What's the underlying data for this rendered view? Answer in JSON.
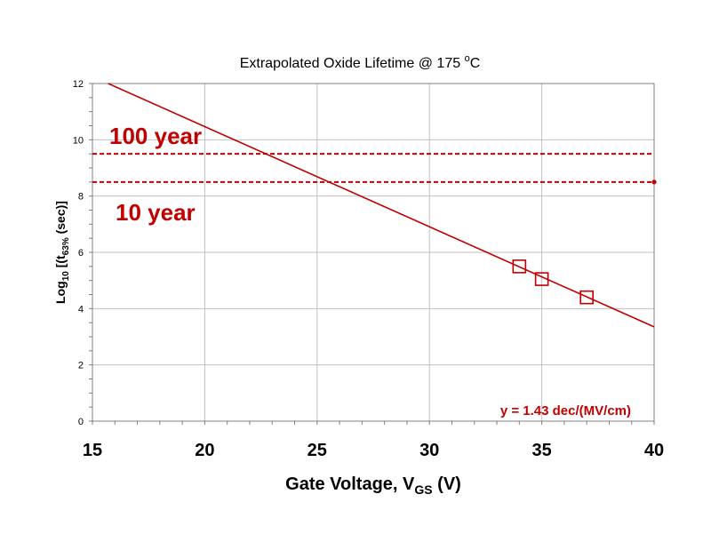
{
  "chart_data": {
    "type": "scatter",
    "title": "Extrapolated Oxide Lifetime @ 175 ",
    "title_sup": "o",
    "title_tail": "C",
    "xlabel": "Gate Voltage, V",
    "xlabel_sub": "GS",
    "xlabel_tail": " (V)",
    "ylabel": "Log",
    "ylabel_sub1": "10",
    "ylabel_mid": " [(t",
    "ylabel_sub2": "63%",
    "ylabel_tail": " (sec)]",
    "xlim": [
      15,
      40
    ],
    "ylim": [
      0,
      12
    ],
    "xticks": [
      15,
      20,
      25,
      30,
      35,
      40
    ],
    "xtick_labels": [
      "15",
      "20",
      "25",
      "30",
      "35",
      "40"
    ],
    "yticks": [
      0,
      2,
      4,
      6,
      8,
      10,
      12
    ],
    "ytick_labels": [
      "0",
      "2",
      "4",
      "6",
      "8",
      "10",
      "12"
    ],
    "grid": true,
    "series": [
      {
        "kind": "markers",
        "marker": "open-square",
        "x": [
          34,
          35,
          37
        ],
        "y": [
          5.5,
          5.05,
          4.4
        ]
      },
      {
        "kind": "fit-line",
        "x": [
          15.7,
          40
        ],
        "y": [
          12,
          3.35
        ]
      }
    ],
    "reference_lines": [
      {
        "y": 9.5,
        "label": "100 year"
      },
      {
        "y": 8.5,
        "label": "10 year"
      }
    ],
    "annotation": "y = 1.43 dec/(MV/cm)"
  },
  "colors": {
    "accent": "#c00000",
    "grid": "#c0c0c0",
    "axis": "#808080",
    "text": "#000000"
  }
}
